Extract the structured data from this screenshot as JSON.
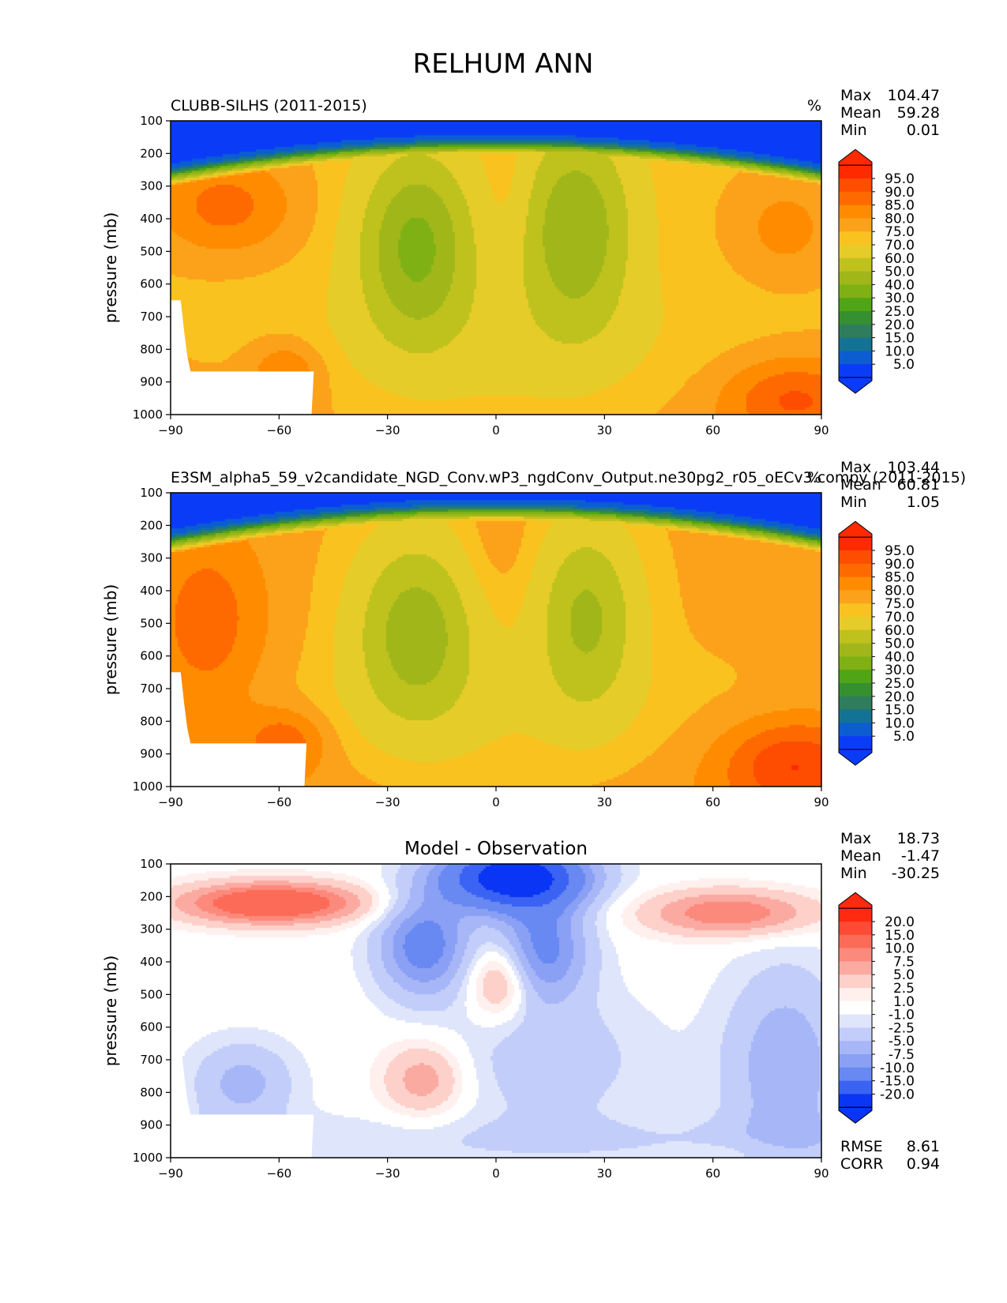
{
  "figure": {
    "title": "RELHUM ANN"
  },
  "chart_data": [
    {
      "type": "heatmap",
      "title": "CLUBB-SILHS (2011-2015)",
      "units": "%",
      "xlabel": "",
      "ylabel": "pressure (mb)",
      "x_ticks": [
        "−90",
        "−60",
        "−30",
        "0",
        "30",
        "60",
        "90"
      ],
      "y_ticks": [
        "100",
        "200",
        "300",
        "400",
        "500",
        "600",
        "700",
        "800",
        "900",
        "1000"
      ],
      "xlim": [
        -90,
        90
      ],
      "ylim": [
        1000,
        100
      ],
      "stats": {
        "max_label": "Max",
        "max": "104.47",
        "mean_label": "Mean",
        "mean": "59.28",
        "min_label": "Min",
        "min": "0.01"
      },
      "colorbar_levels": [
        "95.0",
        "90.0",
        "85.0",
        "80.0",
        "75.0",
        "70.0",
        "60.0",
        "50.0",
        "40.0",
        "30.0",
        "25.0",
        "20.0",
        "15.0",
        "10.0",
        "5.0"
      ],
      "colorbar_colors": [
        "#ff2a00",
        "#ff4d00",
        "#ff6a00",
        "#ff8c00",
        "#fba21a",
        "#f9c21f",
        "#e6cc28",
        "#bfc21d",
        "#a1b719",
        "#80b114",
        "#4fa515",
        "#37902f",
        "#2f7d5c",
        "#137394",
        "#0b5dd0",
        "#0a3cf7"
      ],
      "field": "rh_obs"
    },
    {
      "type": "heatmap",
      "title": "E3SM_alpha5_59_v2candidate_NGD_Conv.wP3_ngdConv_Output.ne30pg2_r05_oECv3.compy (2011-2015)",
      "units": "%",
      "xlabel": "",
      "ylabel": "pressure (mb)",
      "x_ticks": [
        "−90",
        "−60",
        "−30",
        "0",
        "30",
        "60",
        "90"
      ],
      "y_ticks": [
        "100",
        "200",
        "300",
        "400",
        "500",
        "600",
        "700",
        "800",
        "900",
        "1000"
      ],
      "xlim": [
        -90,
        90
      ],
      "ylim": [
        1000,
        100
      ],
      "stats": {
        "max_label": "Max",
        "max": "103.44",
        "mean_label": "Mean",
        "mean": "60.81",
        "min_label": "Min",
        "min": "1.05"
      },
      "colorbar_levels": [
        "95.0",
        "90.0",
        "85.0",
        "80.0",
        "75.0",
        "70.0",
        "60.0",
        "50.0",
        "40.0",
        "30.0",
        "25.0",
        "20.0",
        "15.0",
        "10.0",
        "5.0"
      ],
      "colorbar_colors": [
        "#ff2a00",
        "#ff4d00",
        "#ff6a00",
        "#ff8c00",
        "#fba21a",
        "#f9c21f",
        "#e6cc28",
        "#bfc21d",
        "#a1b719",
        "#80b114",
        "#4fa515",
        "#37902f",
        "#2f7d5c",
        "#137394",
        "#0b5dd0",
        "#0a3cf7"
      ],
      "field": "rh_model"
    },
    {
      "type": "heatmap",
      "title": "Model - Observation",
      "units": "",
      "xlabel": "",
      "ylabel": "pressure (mb)",
      "x_ticks": [
        "−90",
        "−60",
        "−30",
        "0",
        "30",
        "60",
        "90"
      ],
      "y_ticks": [
        "100",
        "200",
        "300",
        "400",
        "500",
        "600",
        "700",
        "800",
        "900",
        "1000"
      ],
      "xlim": [
        -90,
        90
      ],
      "ylim": [
        1000,
        100
      ],
      "stats": {
        "max_label": "Max",
        "max": "18.73",
        "mean_label": "Mean",
        "mean": "-1.47",
        "min_label": "Min",
        "min": "-30.25",
        "rmse_label": "RMSE",
        "rmse": "8.61",
        "corr_label": "CORR",
        "corr": "0.94"
      },
      "colorbar_levels": [
        "20.0",
        "15.0",
        "10.0",
        "7.5",
        "5.0",
        "2.5",
        "1.0",
        "-1.0",
        "-2.5",
        "-5.0",
        "-7.5",
        "-10.0",
        "-15.0",
        "-20.0"
      ],
      "colorbar_colors": [
        "#ff2a10",
        "#ff4a35",
        "#fb6b58",
        "#fb8a7c",
        "#fbaaa1",
        "#fdd0c9",
        "#fff0ee",
        "#ffffff",
        "#dfe5fb",
        "#c2cdfa",
        "#a6b6f7",
        "#8aa0f4",
        "#6888f2",
        "#3b63f3",
        "#0a35f5"
      ],
      "field": "diff"
    }
  ]
}
